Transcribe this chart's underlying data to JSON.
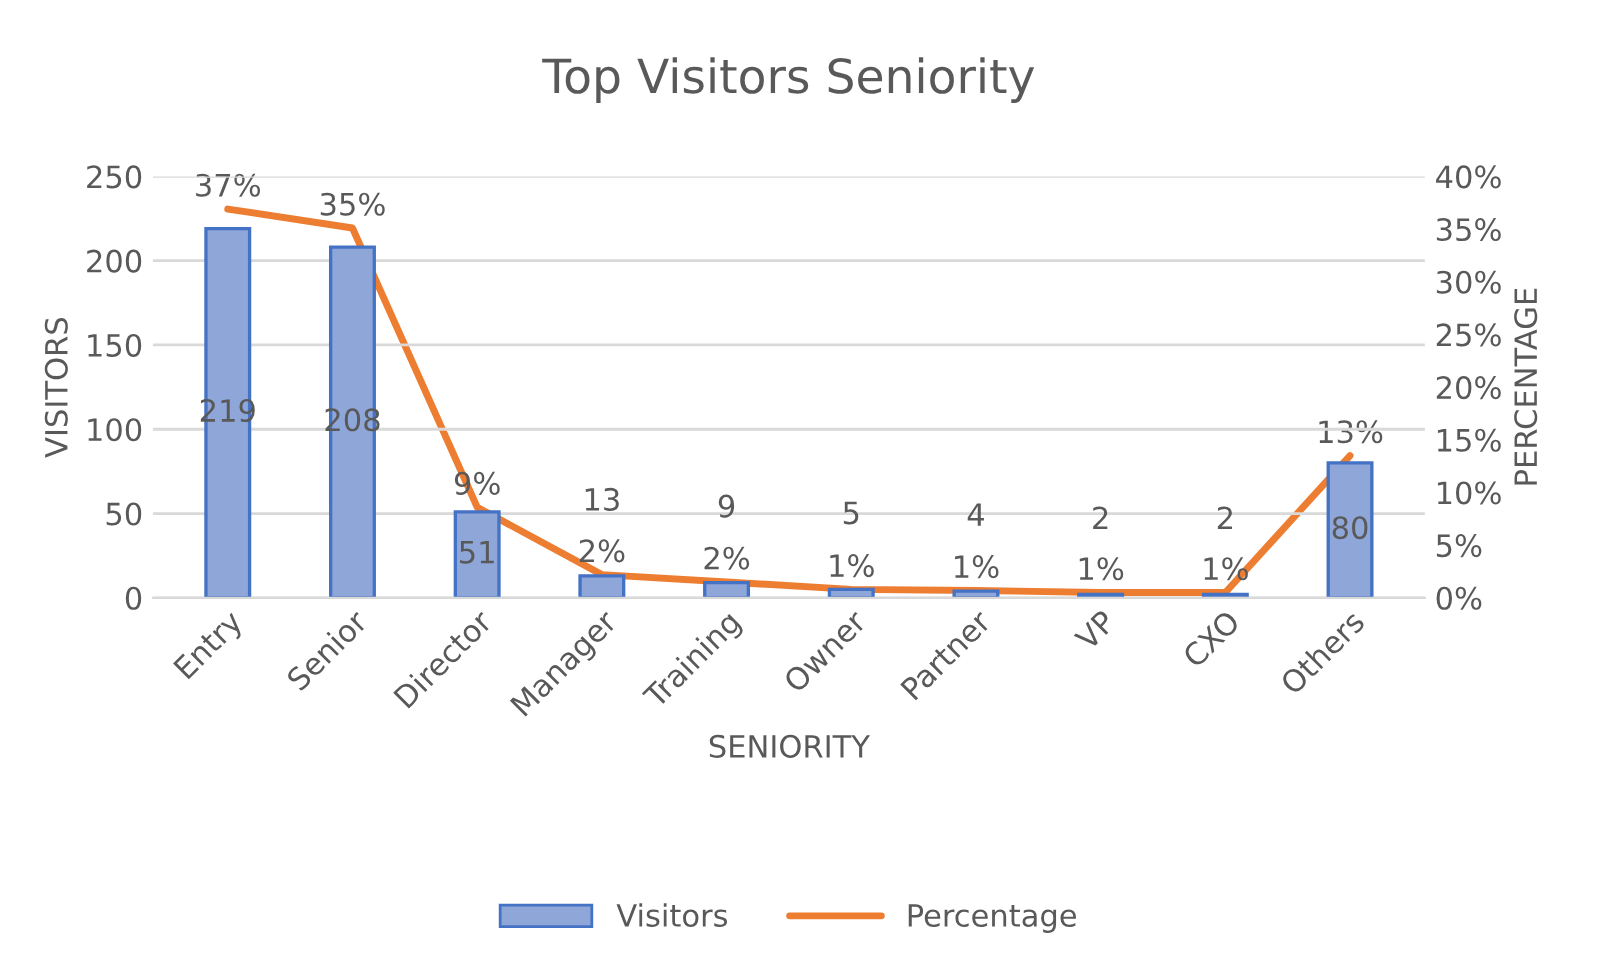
{
  "chart_data": {
    "type": "bar",
    "title": "Top Visitors Seniority",
    "xlabel": "SENIORITY",
    "ylabel": "VISITORS",
    "y2label": "PERCENTAGE",
    "categories": [
      "Entry",
      "Senior",
      "Director",
      "Manager",
      "Training",
      "Owner",
      "Partner",
      "VP",
      "CXO",
      "Others"
    ],
    "series": [
      {
        "name": "Visitors",
        "color": "#8fa6d9",
        "values": [
          219,
          208,
          51,
          13,
          9,
          5,
          4,
          2,
          2,
          80
        ],
        "value_labels": [
          "219",
          "208",
          "51",
          "13",
          "9",
          "5",
          "4",
          "2",
          "2",
          "80"
        ]
      },
      {
        "name": "Percentage",
        "type": "line",
        "axis": "y2",
        "color": "#ed7d31",
        "values": [
          36.9,
          35.1,
          8.6,
          2.2,
          1.5,
          0.8,
          0.7,
          0.5,
          0.5,
          13.5
        ],
        "value_labels": [
          "37%",
          "35%",
          "9%",
          "2%",
          "2%",
          "1%",
          "1%",
          "1%",
          "1%",
          "13%"
        ]
      }
    ],
    "ylim": [
      0,
      250
    ],
    "yticks": [
      0,
      50,
      100,
      150,
      200,
      250
    ],
    "y2lim": [
      0,
      40
    ],
    "y2ticks": [
      {
        "value": 0,
        "label": "0%"
      },
      {
        "value": 5,
        "label": "5%"
      },
      {
        "value": 10,
        "label": "10%"
      },
      {
        "value": 15,
        "label": "15%"
      },
      {
        "value": 20,
        "label": "20%"
      },
      {
        "value": 25,
        "label": "25%"
      },
      {
        "value": 30,
        "label": "30%"
      },
      {
        "value": 35,
        "label": "35%"
      },
      {
        "value": 40,
        "label": "40%"
      }
    ],
    "grid": "y",
    "legend": "bottom",
    "marker": "none",
    "line_style": "solid"
  }
}
